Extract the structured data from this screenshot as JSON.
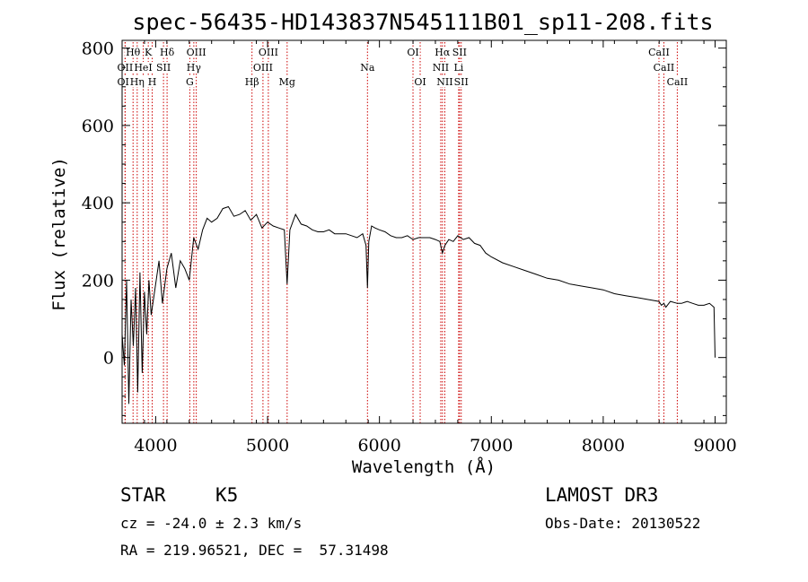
{
  "chart_data": {
    "type": "line",
    "title": "spec-56435-HD143837N545111B01_sp11-208.fits",
    "xlabel": "Wavelength (Å)",
    "ylabel": "Flux (relative)",
    "xlim": [
      3700,
      9100
    ],
    "ylim": [
      -170,
      820
    ],
    "xticks": [
      4000,
      5000,
      6000,
      7000,
      8000,
      9000
    ],
    "yticks": [
      0,
      200,
      400,
      600,
      800
    ],
    "series": [
      {
        "name": "spectrum",
        "x": [
          3700,
          3720,
          3740,
          3760,
          3780,
          3800,
          3820,
          3840,
          3860,
          3880,
          3900,
          3920,
          3940,
          3960,
          3980,
          4000,
          4030,
          4060,
          4100,
          4140,
          4180,
          4220,
          4260,
          4300,
          4340,
          4380,
          4420,
          4460,
          4500,
          4550,
          4600,
          4650,
          4700,
          4750,
          4800,
          4850,
          4900,
          4950,
          5000,
          5050,
          5100,
          5150,
          5175,
          5200,
          5250,
          5300,
          5350,
          5400,
          5450,
          5500,
          5550,
          5600,
          5650,
          5700,
          5750,
          5800,
          5850,
          5880,
          5893,
          5905,
          5930,
          5960,
          6000,
          6050,
          6100,
          6150,
          6200,
          6250,
          6300,
          6350,
          6400,
          6450,
          6500,
          6540,
          6563,
          6585,
          6620,
          6660,
          6700,
          6750,
          6800,
          6850,
          6900,
          6950,
          7000,
          7100,
          7200,
          7300,
          7400,
          7500,
          7600,
          7700,
          7800,
          7900,
          8000,
          8100,
          8200,
          8300,
          8400,
          8498,
          8520,
          8542,
          8560,
          8600,
          8662,
          8700,
          8750,
          8800,
          8850,
          8900,
          8950,
          8990,
          9000
        ],
        "values": [
          60,
          -20,
          200,
          -120,
          150,
          30,
          180,
          -90,
          220,
          -40,
          170,
          60,
          200,
          110,
          150,
          190,
          250,
          140,
          230,
          270,
          180,
          250,
          230,
          200,
          310,
          280,
          330,
          360,
          350,
          360,
          385,
          390,
          365,
          370,
          380,
          355,
          370,
          335,
          350,
          340,
          335,
          330,
          190,
          330,
          370,
          345,
          340,
          330,
          325,
          325,
          330,
          320,
          320,
          320,
          315,
          310,
          320,
          290,
          180,
          300,
          340,
          335,
          330,
          325,
          315,
          310,
          310,
          315,
          305,
          310,
          310,
          310,
          305,
          300,
          270,
          290,
          305,
          300,
          315,
          305,
          310,
          295,
          290,
          270,
          260,
          245,
          235,
          225,
          215,
          205,
          200,
          190,
          185,
          180,
          175,
          165,
          160,
          155,
          150,
          145,
          135,
          140,
          130,
          145,
          140,
          140,
          145,
          140,
          135,
          135,
          140,
          130,
          0
        ]
      }
    ],
    "annotations": [
      {
        "text": "Hθ",
        "x": 3798,
        "row": 1
      },
      {
        "text": "OII",
        "x": 3727,
        "row": 2
      },
      {
        "text": "OII",
        "x": 3727,
        "row": 3
      },
      {
        "text": "K",
        "x": 3934,
        "row": 1
      },
      {
        "text": "H",
        "x": 3969,
        "row": 3
      },
      {
        "text": "HeI",
        "x": 3889,
        "row": 2
      },
      {
        "text": "Hη",
        "x": 3835,
        "row": 3
      },
      {
        "text": "SII",
        "x": 4070,
        "row": 2
      },
      {
        "text": "Hδ",
        "x": 4102,
        "row": 1
      },
      {
        "text": "OIII",
        "x": 4363,
        "row": 1
      },
      {
        "text": "Hγ",
        "x": 4341,
        "row": 2
      },
      {
        "text": "G",
        "x": 4305,
        "row": 3
      },
      {
        "text": "OIII",
        "x": 5007,
        "row": 1
      },
      {
        "text": "OIII",
        "x": 4959,
        "row": 2
      },
      {
        "text": "Hβ",
        "x": 4861,
        "row": 3
      },
      {
        "text": "Mg",
        "x": 5175,
        "row": 3
      },
      {
        "text": "Na",
        "x": 5893,
        "row": 2
      },
      {
        "text": "OI",
        "x": 6300,
        "row": 1
      },
      {
        "text": "OI",
        "x": 6364,
        "row": 3
      },
      {
        "text": "Hα",
        "x": 6563,
        "row": 1
      },
      {
        "text": "SII",
        "x": 6716,
        "row": 1
      },
      {
        "text": "NII",
        "x": 6548,
        "row": 2
      },
      {
        "text": "Li",
        "x": 6708,
        "row": 2
      },
      {
        "text": "NII",
        "x": 6584,
        "row": 3
      },
      {
        "text": "SII",
        "x": 6731,
        "row": 3
      },
      {
        "text": "CaII",
        "x": 8498,
        "row": 1
      },
      {
        "text": "CaII",
        "x": 8542,
        "row": 2
      },
      {
        "text": "CaII",
        "x": 8662,
        "row": 3
      }
    ]
  },
  "info": {
    "object_class": "STAR",
    "subclass": "K5",
    "survey": "LAMOST DR3",
    "cz": "cz = -24.0 ± 2.3 km/s",
    "obs_date": "Obs-Date: 20130522",
    "coords": "RA = 219.96521, DEC =  57.31498"
  },
  "colors": {
    "line": "#000000",
    "marker": "#cc0000"
  }
}
